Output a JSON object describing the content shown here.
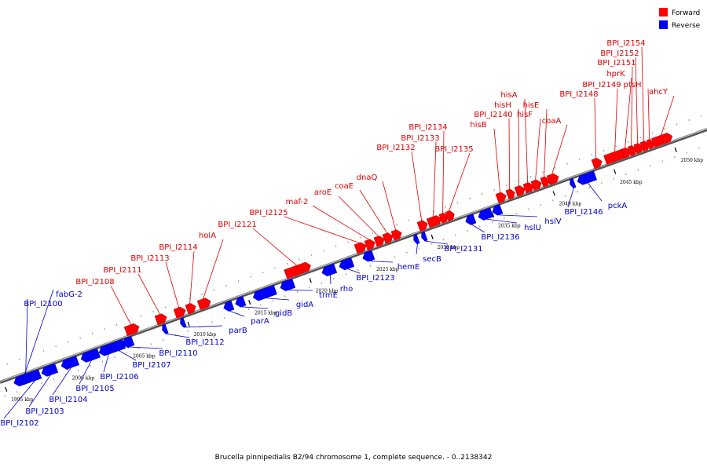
{
  "legend": {
    "forward": {
      "label": "Forward",
      "color": "#ff0000"
    },
    "reverse": {
      "label": "Reverse",
      "color": "#0000ff"
    }
  },
  "caption": "Brucella pinnipedialis B2/94 chromosome 1, complete sequence. - 0..2138342",
  "scale_labels": [
    "1995 kbp",
    "2000 kbp",
    "2005 kbp",
    "2010 kbp",
    "2015 kbp",
    "2020 kbp",
    "2025 kbp",
    "2030 kbp",
    "2035 kbp",
    "2040 kbp",
    "2045 kbp",
    "2050 kbp"
  ],
  "forward_genes": [
    "BPI_I2108",
    "BPI_I2111",
    "BPI_I2113",
    "BPI_I2114",
    "holA",
    "BPI_I2121",
    "BPI_I2125",
    "maf-2",
    "aroE",
    "coaE",
    "dnaQ",
    "BPI_I2132",
    "BPI_I2133",
    "BPI_I2134",
    "BPI_I2135",
    "hisB",
    "BPI_I2140",
    "hisH",
    "hisA",
    "hisF",
    "hisE",
    "coaA",
    "BPI_I2148",
    "BPI_I2149",
    "hprK",
    "BPI_I2151",
    "BPI_I2152",
    "BPI_I2154",
    "ptsH",
    "ahcY"
  ],
  "reverse_genes": [
    "fabG-2",
    "BPI_I2100",
    "BPI_I2102",
    "BPI_I2103",
    "BPI_I2104",
    "BPI_I2105",
    "BPI_I2106",
    "BPI_I2107",
    "BPI_I2110",
    "BPI_I2112",
    "parB",
    "parA",
    "gidB",
    "gidA",
    "trmE",
    "rho",
    "BPI_I2123",
    "hemE",
    "secB",
    "BPI_I2131",
    "BPI_I2136",
    "hslU",
    "hslV",
    "BPI_I2146",
    "pckA"
  ]
}
